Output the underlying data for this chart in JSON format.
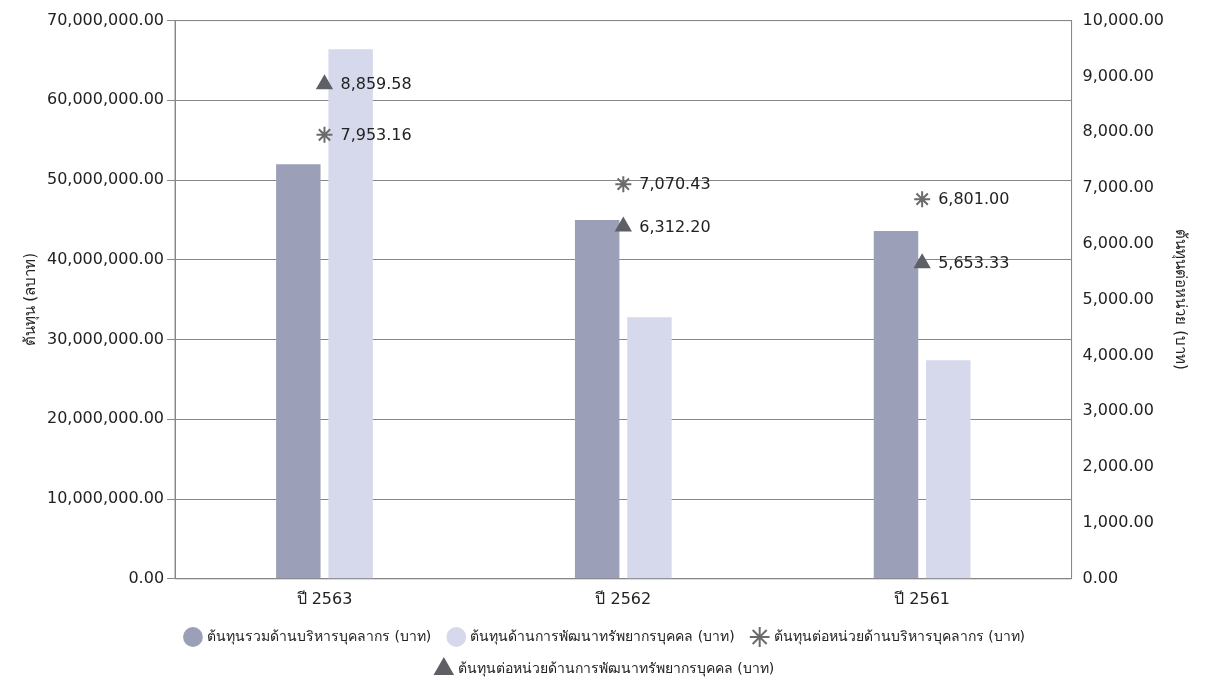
{
  "chart_data": {
    "type": "bar",
    "ylabel": "ต้นทุน (ลบาท)",
    "y2label": "ต้นทุนต่อหน่วย (บาท)",
    "categories": [
      "ปี 2563",
      "ปี 2562",
      "ปี 2561"
    ],
    "series": [
      {
        "name": "ต้นทุนรวมด้านบริหารบุคลากร (บาท)",
        "color": "#9c9fb8",
        "values": [
          52000000,
          45000000,
          43600000
        ]
      },
      {
        "name": "ต้นทุนด้านการพัฒนาทรัพยากรบุคคล (บาท)",
        "color": "#d6d9ec",
        "values": [
          66400000,
          32800000,
          27400000
        ]
      },
      {
        "name": "ต้นทุนต่อหน่วยด้านบริหารบุคลากร (บาท)",
        "type": "scatter",
        "x": [
          "ปี 2563",
          "ปี 2562",
          "ปี 2561"
        ],
        "axis": "y2",
        "marker": "cross",
        "color": "#6b6b6b",
        "values": [
          7953.16,
          7070.43,
          6801.0
        ],
        "value_labels": [
          "7,953.16",
          "7,070.43",
          "6,801.00"
        ]
      },
      {
        "name": "ต้นทุนต่อหน่วยด้านการพัฒนาทรัพยากรบุคคล (บาท)",
        "type": "scatter",
        "x": [
          "ปี 2563",
          "ปี 2562",
          "ปี 2561"
        ],
        "axis": "y2",
        "marker": "triangle",
        "color": "#5f5f66",
        "values": [
          8859.58,
          6312.2,
          5653.33
        ],
        "value_labels": [
          "8,859.58",
          "6,312.20",
          "5,653.33"
        ]
      }
    ],
    "ylim": [
      0,
      70000000
    ],
    "yticks": [
      {
        "value": 0,
        "label": "0.00"
      },
      {
        "value": 10000000,
        "label": "10,000,000.00"
      },
      {
        "value": 20000000,
        "label": "20,000,000.00"
      },
      {
        "value": 30000000,
        "label": "30,000,000.00"
      },
      {
        "value": 40000000,
        "label": "40,000,000.00"
      },
      {
        "value": 50000000,
        "label": "50,000,000.00"
      },
      {
        "value": 60000000,
        "label": "60,000,000.00"
      },
      {
        "value": 70000000,
        "label": "70,000,000.00"
      }
    ],
    "y2lim": [
      0,
      10000
    ],
    "y2ticks": [
      {
        "value": 0,
        "label": "0.00"
      },
      {
        "value": 1000,
        "label": "1,000.00"
      },
      {
        "value": 2000,
        "label": "2,000.00"
      },
      {
        "value": 3000,
        "label": "3,000.00"
      },
      {
        "value": 4000,
        "label": "4,000.00"
      },
      {
        "value": 5000,
        "label": "5,000.00"
      },
      {
        "value": 6000,
        "label": "6,000.00"
      },
      {
        "value": 7000,
        "label": "7,000.00"
      },
      {
        "value": 8000,
        "label": "8,000.00"
      },
      {
        "value": 9000,
        "label": "9,000.00"
      },
      {
        "value": 10000,
        "label": "10,000.00"
      }
    ],
    "grid": "y",
    "legend": "bottom"
  }
}
